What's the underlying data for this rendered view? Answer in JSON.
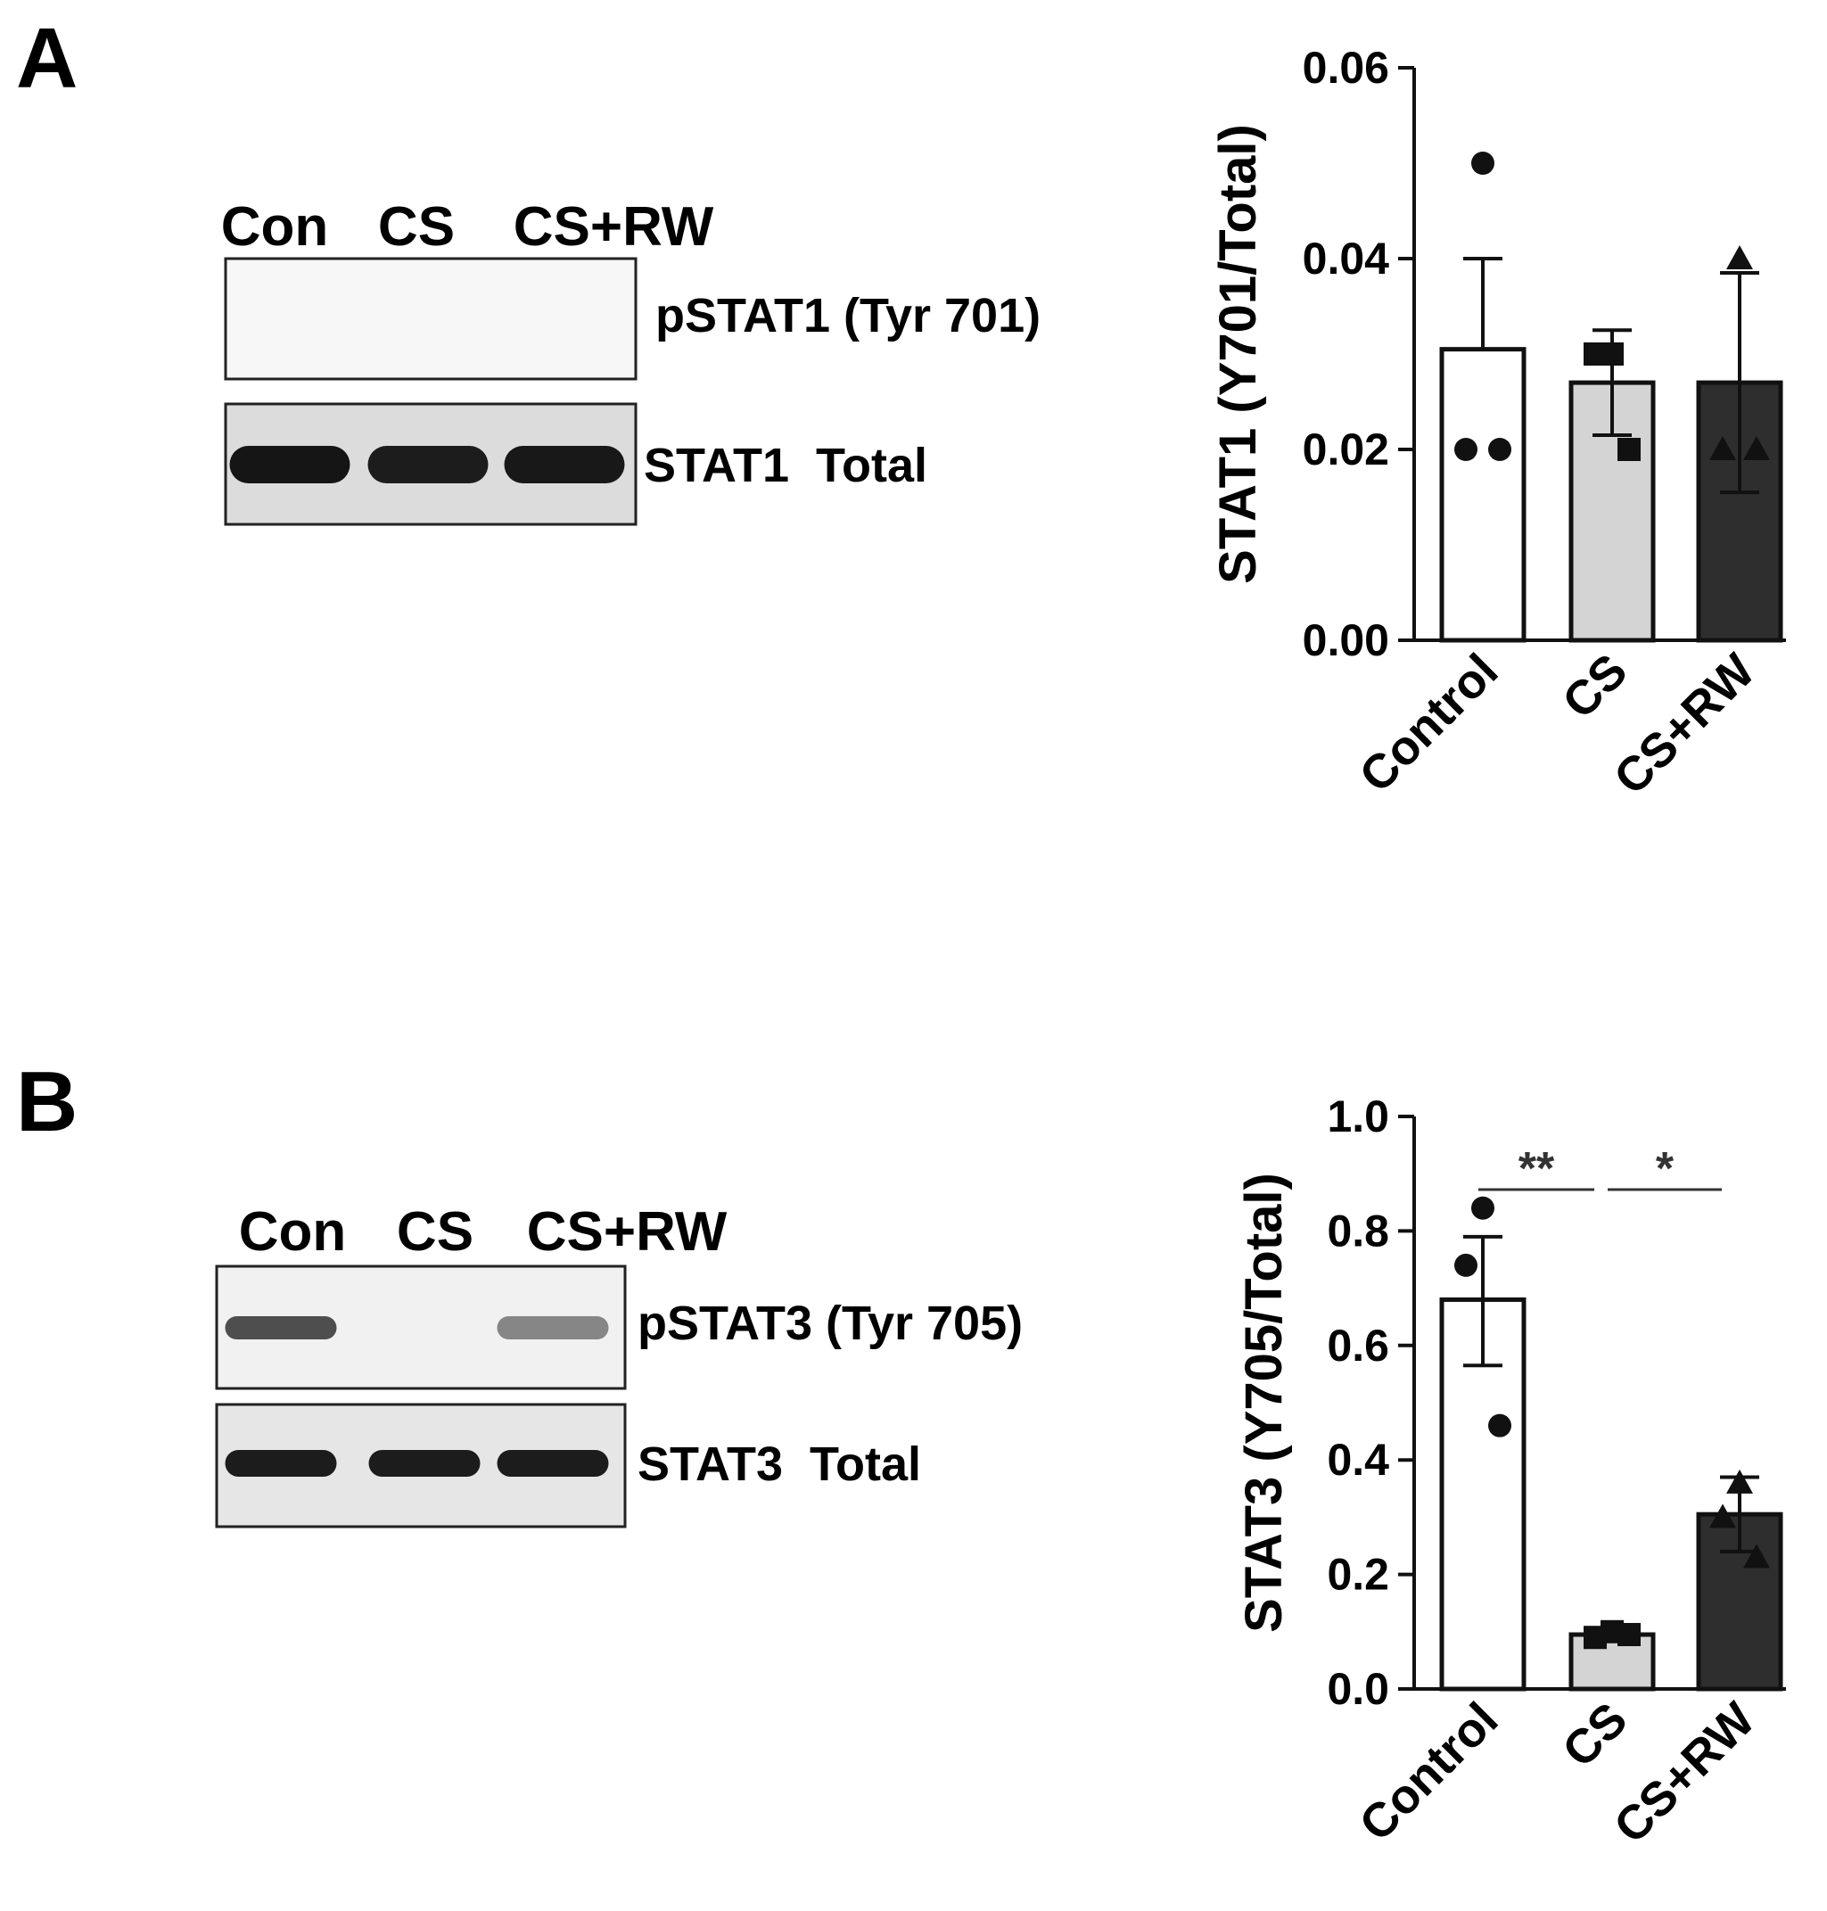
{
  "panels": [
    {
      "letter": "A",
      "blot": {
        "lane_labels": [
          "Con",
          "CS",
          "CS+RW"
        ],
        "rows": [
          {
            "label": "pSTAT1 (Tyr 701)",
            "band_intensity": [
              0,
              0,
              0
            ]
          },
          {
            "label": "STAT1  Total",
            "band_intensity": [
              0.95,
              0.92,
              0.94
            ]
          }
        ]
      }
    },
    {
      "letter": "B",
      "blot": {
        "lane_labels": [
          "Con",
          "CS",
          "CS+RW"
        ],
        "rows": [
          {
            "label": "pSTAT3 (Tyr 705)",
            "band_intensity": [
              0.7,
              0,
              0.45
            ]
          },
          {
            "label": "STAT3  Total",
            "band_intensity": [
              0.92,
              0.92,
              0.92
            ]
          }
        ]
      }
    }
  ],
  "chart_data": [
    {
      "type": "bar",
      "panel": "A",
      "title": "",
      "xlabel": "",
      "ylabel": "STAT1 (Y701/Total)",
      "ylim": [
        0,
        0.06
      ],
      "yticks": [
        0.0,
        0.02,
        0.04,
        0.06
      ],
      "ytick_labels": [
        "0.00",
        "0.02",
        "0.04",
        "0.06"
      ],
      "grid": false,
      "categories": [
        "Control",
        "CS",
        "CS+RW"
      ],
      "values": [
        0.0305,
        0.027,
        0.027
      ],
      "error_upper": [
        0.04,
        0.0325,
        0.0385
      ],
      "error_lower": [
        0.0305,
        0.0215,
        0.0155
      ],
      "points": [
        [
          0.05,
          0.02,
          0.02
        ],
        [
          0.03,
          0.03,
          0.02
        ],
        [
          0.04,
          0.02,
          0.02
        ]
      ],
      "markers": [
        "circle",
        "square",
        "triangle"
      ],
      "bar_colors": [
        "#ffffff",
        "#d4d4d4",
        "#2e2e2e"
      ],
      "significance": []
    },
    {
      "type": "bar",
      "panel": "B",
      "title": "",
      "xlabel": "",
      "ylabel": "STAT3 (Y705/Total)",
      "ylim": [
        0,
        1.0
      ],
      "yticks": [
        0.0,
        0.2,
        0.4,
        0.6,
        0.8,
        1.0
      ],
      "ytick_labels": [
        "0.0",
        "0.2",
        "0.4",
        "0.6",
        "0.8",
        "1.0"
      ],
      "grid": false,
      "categories": [
        "Control",
        "CS",
        "CS+RW"
      ],
      "values": [
        0.68,
        0.095,
        0.305
      ],
      "error_upper": [
        0.79,
        0.105,
        0.37
      ],
      "error_lower": [
        0.565,
        0.085,
        0.24
      ],
      "points": [
        [
          0.84,
          0.74,
          0.46
        ],
        [
          0.1,
          0.09,
          0.095
        ],
        [
          0.36,
          0.3,
          0.23
        ]
      ],
      "markers": [
        "circle",
        "square",
        "triangle"
      ],
      "bar_colors": [
        "#ffffff",
        "#d4d4d4",
        "#2e2e2e"
      ],
      "significance": [
        {
          "from": 0,
          "to": 1,
          "label": "**"
        },
        {
          "from": 1,
          "to": 2,
          "label": "*"
        }
      ]
    }
  ]
}
